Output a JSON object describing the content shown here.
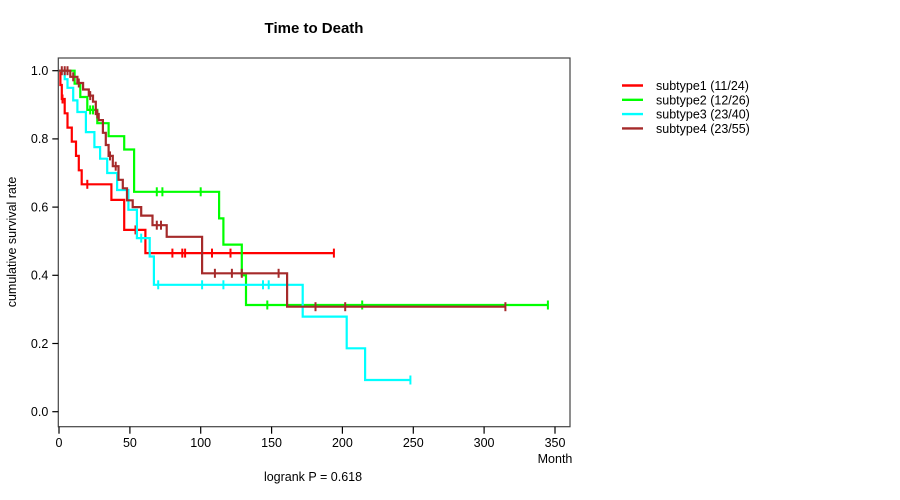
{
  "chart_data": {
    "type": "line",
    "subtype": "kaplan-meier-step",
    "title": "Time to Death",
    "annotation": "logrank P = 0.618",
    "x_axis": {
      "label": "Month",
      "range": [
        0,
        360
      ],
      "ticks": [
        {
          "value": 0,
          "label": "0"
        },
        {
          "value": 50,
          "label": "50"
        },
        {
          "value": 100,
          "label": "100"
        },
        {
          "value": 150,
          "label": "150"
        },
        {
          "value": 200,
          "label": "200"
        },
        {
          "value": 250,
          "label": "250"
        },
        {
          "value": 300,
          "label": "300"
        },
        {
          "value": 350,
          "label": "350"
        }
      ]
    },
    "y_axis": {
      "label": "cumulative survival rate",
      "range": [
        0,
        1
      ],
      "ticks": [
        {
          "value": 0.0,
          "label": "0.0"
        },
        {
          "value": 0.2,
          "label": "0.2"
        },
        {
          "value": 0.4,
          "label": "0.4"
        },
        {
          "value": 0.6,
          "label": "0.6"
        },
        {
          "value": 0.8,
          "label": "0.8"
        },
        {
          "value": 1.0,
          "label": "1.0"
        }
      ]
    },
    "legend_position": "right-outside",
    "grid": false,
    "series": [
      {
        "name": "subtype1 (11/24)",
        "events": "11/24",
        "color": "#ff0000",
        "start": [
          0,
          1.0
        ],
        "steps": [
          [
            1,
            0.958
          ],
          [
            2,
            0.917
          ],
          [
            4,
            0.875
          ],
          [
            6,
            0.833
          ],
          [
            9,
            0.792
          ],
          [
            12,
            0.75
          ],
          [
            14,
            0.708
          ],
          [
            16,
            0.667
          ],
          [
            37,
            0.621
          ],
          [
            46,
            0.533
          ],
          [
            61,
            0.465
          ]
        ],
        "end_time": 194,
        "censors": [
          [
            2.5,
            0.917
          ],
          [
            20,
            0.667
          ],
          [
            54,
            0.533
          ],
          [
            80,
            0.465
          ],
          [
            87,
            0.465
          ],
          [
            89,
            0.465
          ],
          [
            108,
            0.465
          ],
          [
            121,
            0.465
          ],
          [
            194,
            0.465
          ]
        ]
      },
      {
        "name": "subtype2 (12/26)",
        "events": "12/26",
        "color": "#00ff00",
        "start": [
          0,
          1.0
        ],
        "steps": [
          [
            11,
            0.962
          ],
          [
            15,
            0.923
          ],
          [
            20,
            0.885
          ],
          [
            27,
            0.846
          ],
          [
            35,
            0.808
          ],
          [
            46,
            0.769
          ],
          [
            53,
            0.645
          ],
          [
            113,
            0.567
          ],
          [
            116,
            0.49
          ],
          [
            129,
            0.4
          ],
          [
            132,
            0.313
          ]
        ],
        "end_time": 345,
        "censors": [
          [
            22,
            0.885
          ],
          [
            24,
            0.885
          ],
          [
            69,
            0.645
          ],
          [
            73,
            0.645
          ],
          [
            100,
            0.645
          ],
          [
            147,
            0.313
          ],
          [
            214,
            0.313
          ],
          [
            345,
            0.313
          ]
        ]
      },
      {
        "name": "subtype3 (23/40)",
        "events": "23/40",
        "color": "#00ffff",
        "start": [
          0,
          1.0
        ],
        "steps": [
          [
            4,
            0.975
          ],
          [
            6,
            0.95
          ],
          [
            10,
            0.913
          ],
          [
            13,
            0.879
          ],
          [
            19,
            0.82
          ],
          [
            25,
            0.776
          ],
          [
            29,
            0.742
          ],
          [
            34,
            0.7
          ],
          [
            41,
            0.65
          ],
          [
            49,
            0.592
          ],
          [
            55,
            0.509
          ],
          [
            64,
            0.455
          ],
          [
            67,
            0.372
          ],
          [
            172,
            0.279
          ],
          [
            203,
            0.186
          ],
          [
            216,
            0.093
          ]
        ],
        "end_time": 248,
        "censors": [
          [
            58,
            0.509
          ],
          [
            70,
            0.372
          ],
          [
            101,
            0.372
          ],
          [
            116,
            0.372
          ],
          [
            144,
            0.372
          ],
          [
            148,
            0.372
          ],
          [
            248,
            0.093
          ]
        ]
      },
      {
        "name": "subtype4 (23/55)",
        "events": "23/55",
        "color": "#a52a2a",
        "start": [
          0,
          1.0
        ],
        "steps": [
          [
            8,
            0.982
          ],
          [
            13,
            0.964
          ],
          [
            17,
            0.945
          ],
          [
            21,
            0.927
          ],
          [
            24,
            0.909
          ],
          [
            26,
            0.873
          ],
          [
            28,
            0.855
          ],
          [
            31,
            0.818
          ],
          [
            33,
            0.782
          ],
          [
            35,
            0.75
          ],
          [
            38,
            0.72
          ],
          [
            42,
            0.68
          ],
          [
            45,
            0.655
          ],
          [
            48,
            0.62
          ],
          [
            52,
            0.6
          ],
          [
            58,
            0.575
          ],
          [
            66,
            0.547
          ],
          [
            76,
            0.513
          ],
          [
            101,
            0.406
          ],
          [
            161,
            0.308
          ]
        ],
        "end_time": 315,
        "censors": [
          [
            2,
            1.0
          ],
          [
            4,
            1.0
          ],
          [
            6,
            1.0
          ],
          [
            10,
            0.982
          ],
          [
            14,
            0.964
          ],
          [
            22,
            0.927
          ],
          [
            27,
            0.873
          ],
          [
            36,
            0.75
          ],
          [
            40,
            0.72
          ],
          [
            69,
            0.547
          ],
          [
            72,
            0.547
          ],
          [
            110,
            0.406
          ],
          [
            122,
            0.406
          ],
          [
            129,
            0.406
          ],
          [
            155,
            0.406
          ],
          [
            181,
            0.308
          ],
          [
            202,
            0.308
          ],
          [
            315,
            0.308
          ]
        ]
      }
    ]
  }
}
